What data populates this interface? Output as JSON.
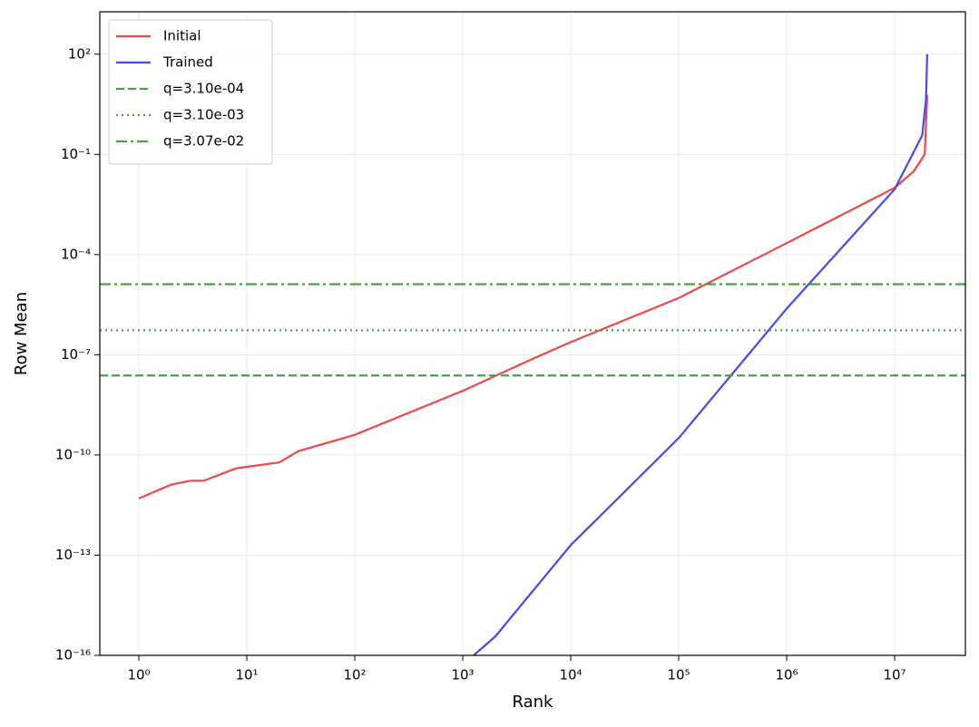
{
  "chart_data": {
    "type": "line",
    "xlabel": "Rank",
    "ylabel": "Row Mean",
    "xscale": "log",
    "yscale": "log",
    "grid": true,
    "legend": "upper left",
    "xlim": [
      0.435,
      45200000
    ],
    "ylim": [
      1e-16,
      1860
    ],
    "xticks": [
      {
        "value": 1,
        "label": "10⁰"
      },
      {
        "value": 10,
        "label": "10¹"
      },
      {
        "value": 100,
        "label": "10²"
      },
      {
        "value": 1000,
        "label": "10³"
      },
      {
        "value": 10000,
        "label": "10⁴"
      },
      {
        "value": 100000,
        "label": "10⁵"
      },
      {
        "value": 1000000,
        "label": "10⁶"
      },
      {
        "value": 10000000,
        "label": "10⁷"
      }
    ],
    "yticks": [
      {
        "value": 100,
        "label": "10²"
      },
      {
        "value": 0.1,
        "label": "10⁻¹"
      },
      {
        "value": 0.0001,
        "label": "10⁻⁴"
      },
      {
        "value": 1e-07,
        "label": "10⁻⁷"
      },
      {
        "value": 1e-10,
        "label": "10⁻¹⁰"
      },
      {
        "value": 1e-13,
        "label": "10⁻¹³"
      },
      {
        "value": 1e-16,
        "label": "10⁻¹⁶"
      }
    ],
    "series": [
      {
        "name": "Initial",
        "color": "#f04848",
        "x": [
          1,
          2,
          3,
          4,
          8,
          20,
          30,
          100,
          1000,
          4000,
          10000,
          100000,
          1000000,
          10000000,
          15000000,
          19000000,
          20000000
        ],
        "values": [
          5e-12,
          1.3e-11,
          1.7e-11,
          1.7e-11,
          4e-11,
          6e-11,
          1.3e-10,
          4e-10,
          8.3e-09,
          6.5e-08,
          2.4e-07,
          5e-06,
          0.00022,
          0.01,
          0.031,
          0.1,
          6
        ]
      },
      {
        "name": "Trained",
        "color": "#4848f0",
        "x": [
          1260,
          2000,
          10000,
          100000,
          1000000,
          10000000,
          18000000,
          19500000,
          20000000
        ],
        "values": [
          1e-16,
          3.7e-16,
          2e-13,
          3.2e-10,
          2.4e-06,
          0.009,
          0.37,
          4.5,
          100
        ]
      }
    ],
    "hlines": [
      {
        "name": "q=3.10e-04",
        "color": "#4a9e4a",
        "linestyle": "dashed",
        "y": 2.4e-08
      },
      {
        "name": "q=3.10e-03",
        "color": "#4a9e4a",
        "linestyle": "dotted",
        "y": 5.4e-07
      },
      {
        "name": "q=3.07e-02",
        "color": "#4a9e4a",
        "linestyle": "dashdot",
        "y": 1.3e-05
      }
    ]
  }
}
